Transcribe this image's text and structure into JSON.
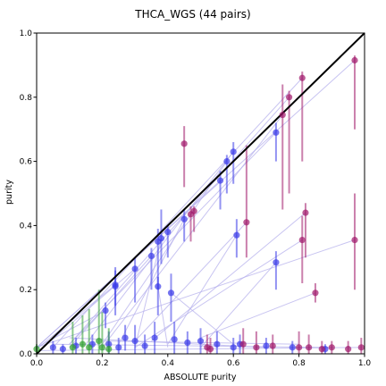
{
  "chart_data": {
    "type": "scatter",
    "title": "THCA_WGS (44 pairs)",
    "xlabel": "ABSOLUTE purity",
    "ylabel": "purity",
    "xlim": [
      0,
      1
    ],
    "ylim": [
      0,
      1
    ],
    "xticks": [
      "0.0",
      "0.2",
      "0.4",
      "0.6",
      "0.8",
      "1.0"
    ],
    "yticks": [
      "0.0",
      "0.2",
      "0.4",
      "0.6",
      "0.8",
      "1.0"
    ],
    "grid": false,
    "legend": "none",
    "colors": {
      "blue": "#3a3ae8",
      "purple": "#a0176a",
      "green": "#2e9e2e",
      "line": "#b6b0ec",
      "identity": "#000000"
    },
    "identity_line": [
      [
        0,
        0
      ],
      [
        1,
        1
      ]
    ],
    "series": [
      {
        "color": "blue",
        "points": [
          {
            "x": 0.6,
            "y": 0.63,
            "lo": 0.53,
            "hi": 0.66
          },
          {
            "x": 0.58,
            "y": 0.6,
            "lo": 0.5,
            "hi": 0.62
          },
          {
            "x": 0.56,
            "y": 0.54,
            "lo": 0.45,
            "hi": 0.57
          },
          {
            "x": 0.73,
            "y": 0.69,
            "lo": 0.6,
            "hi": 0.72
          },
          {
            "x": 0.61,
            "y": 0.37,
            "lo": 0.3,
            "hi": 0.42
          },
          {
            "x": 0.73,
            "y": 0.285,
            "lo": 0.2,
            "hi": 0.32
          },
          {
            "x": 0.45,
            "y": 0.42,
            "lo": 0.35,
            "hi": 0.45
          },
          {
            "x": 0.4,
            "y": 0.38,
            "lo": 0.3,
            "hi": 0.4
          },
          {
            "x": 0.38,
            "y": 0.36,
            "lo": 0.28,
            "hi": 0.45
          },
          {
            "x": 0.37,
            "y": 0.35,
            "lo": 0.2,
            "hi": 0.39
          },
          {
            "x": 0.35,
            "y": 0.305,
            "lo": 0.2,
            "hi": 0.33
          },
          {
            "x": 0.37,
            "y": 0.21,
            "lo": 0.12,
            "hi": 0.24
          },
          {
            "x": 0.41,
            "y": 0.19,
            "lo": 0.1,
            "hi": 0.25
          },
          {
            "x": 0.3,
            "y": 0.265,
            "lo": 0.16,
            "hi": 0.3
          },
          {
            "x": 0.24,
            "y": 0.215,
            "lo": 0.15,
            "hi": 0.27
          },
          {
            "x": 0.24,
            "y": 0.21,
            "lo": 0.12,
            "hi": 0.26
          },
          {
            "x": 0.21,
            "y": 0.135,
            "lo": 0.08,
            "hi": 0.16
          },
          {
            "x": 0.27,
            "y": 0.05,
            "lo": 0.01,
            "hi": 0.09
          },
          {
            "x": 0.3,
            "y": 0.04,
            "lo": 0.0,
            "hi": 0.09
          },
          {
            "x": 0.36,
            "y": 0.05,
            "lo": 0.0,
            "hi": 0.1
          },
          {
            "x": 0.42,
            "y": 0.045,
            "lo": 0.0,
            "hi": 0.1
          },
          {
            "x": 0.5,
            "y": 0.04,
            "lo": 0.0,
            "hi": 0.08
          },
          {
            "x": 0.55,
            "y": 0.03,
            "lo": 0.0,
            "hi": 0.07
          },
          {
            "x": 0.62,
            "y": 0.03,
            "lo": 0.0,
            "hi": 0.06
          },
          {
            "x": 0.7,
            "y": 0.025,
            "lo": 0.0,
            "hi": 0.05
          },
          {
            "x": 0.78,
            "y": 0.02,
            "lo": 0.0,
            "hi": 0.04
          },
          {
            "x": 0.05,
            "y": 0.02,
            "lo": 0.0,
            "hi": 0.04
          },
          {
            "x": 0.12,
            "y": 0.025,
            "lo": 0.0,
            "hi": 0.05
          },
          {
            "x": 0.17,
            "y": 0.03,
            "lo": 0.0,
            "hi": 0.06
          },
          {
            "x": 0.22,
            "y": 0.03,
            "lo": 0.0,
            "hi": 0.07
          },
          {
            "x": 0.46,
            "y": 0.035,
            "lo": 0.0,
            "hi": 0.07
          },
          {
            "x": 0.6,
            "y": 0.02,
            "lo": 0.0,
            "hi": 0.05
          },
          {
            "x": 0.88,
            "y": 0.015,
            "lo": 0.0,
            "hi": 0.03
          },
          {
            "x": 0.25,
            "y": 0.02,
            "lo": 0.0,
            "hi": 0.05
          },
          {
            "x": 0.33,
            "y": 0.025,
            "lo": 0.0,
            "hi": 0.06
          },
          {
            "x": 0.08,
            "y": 0.015,
            "lo": 0.0,
            "hi": 0.03
          }
        ]
      },
      {
        "color": "purple",
        "points": [
          {
            "x": 0.97,
            "y": 0.915,
            "lo": 0.7,
            "hi": 0.93
          },
          {
            "x": 0.81,
            "y": 0.86,
            "lo": 0.6,
            "hi": 0.88
          },
          {
            "x": 0.77,
            "y": 0.8,
            "lo": 0.5,
            "hi": 0.82
          },
          {
            "x": 0.75,
            "y": 0.745,
            "lo": 0.45,
            "hi": 0.84
          },
          {
            "x": 0.45,
            "y": 0.655,
            "lo": 0.52,
            "hi": 0.71
          },
          {
            "x": 0.64,
            "y": 0.41,
            "lo": 0.3,
            "hi": 0.65
          },
          {
            "x": 0.47,
            "y": 0.435,
            "lo": 0.35,
            "hi": 0.46
          },
          {
            "x": 0.48,
            "y": 0.445,
            "lo": 0.38,
            "hi": 0.46
          },
          {
            "x": 0.82,
            "y": 0.44,
            "lo": 0.3,
            "hi": 0.47
          },
          {
            "x": 0.81,
            "y": 0.355,
            "lo": 0.22,
            "hi": 0.43
          },
          {
            "x": 0.97,
            "y": 0.355,
            "lo": 0.2,
            "hi": 0.5
          },
          {
            "x": 0.85,
            "y": 0.19,
            "lo": 0.16,
            "hi": 0.22
          },
          {
            "x": 0.99,
            "y": 0.02,
            "lo": 0.0,
            "hi": 0.05
          },
          {
            "x": 0.95,
            "y": 0.015,
            "lo": 0.0,
            "hi": 0.04
          },
          {
            "x": 0.9,
            "y": 0.02,
            "lo": 0.0,
            "hi": 0.04
          },
          {
            "x": 0.87,
            "y": 0.015,
            "lo": 0.0,
            "hi": 0.04
          },
          {
            "x": 0.83,
            "y": 0.02,
            "lo": 0.0,
            "hi": 0.06
          },
          {
            "x": 0.8,
            "y": 0.02,
            "lo": 0.0,
            "hi": 0.07
          },
          {
            "x": 0.72,
            "y": 0.025,
            "lo": 0.0,
            "hi": 0.06
          },
          {
            "x": 0.67,
            "y": 0.02,
            "lo": 0.0,
            "hi": 0.07
          },
          {
            "x": 0.63,
            "y": 0.03,
            "lo": 0.0,
            "hi": 0.08
          },
          {
            "x": 0.53,
            "y": 0.015,
            "lo": 0.0,
            "hi": 0.05
          },
          {
            "x": 0.52,
            "y": 0.02,
            "lo": 0.0,
            "hi": 0.06
          }
        ]
      },
      {
        "color": "green",
        "points": [
          {
            "x": 0.0,
            "y": 0.015,
            "lo": 0.0,
            "hi": 0.03
          },
          {
            "x": 0.11,
            "y": 0.02,
            "lo": 0.0,
            "hi": 0.1
          },
          {
            "x": 0.14,
            "y": 0.03,
            "lo": 0.0,
            "hi": 0.12
          },
          {
            "x": 0.16,
            "y": 0.02,
            "lo": 0.0,
            "hi": 0.14
          },
          {
            "x": 0.19,
            "y": 0.04,
            "lo": 0.0,
            "hi": 0.2
          },
          {
            "x": 0.2,
            "y": 0.02,
            "lo": 0.0,
            "hi": 0.13
          },
          {
            "x": 0.22,
            "y": 0.015,
            "lo": 0.0,
            "hi": 0.08
          }
        ]
      }
    ],
    "connectors": [
      [
        [
          0.0,
          0.02
        ],
        [
          0.97,
          0.915
        ]
      ],
      [
        [
          0.05,
          0.02
        ],
        [
          0.81,
          0.86
        ]
      ],
      [
        [
          0.1,
          0.03
        ],
        [
          0.77,
          0.8
        ]
      ],
      [
        [
          0.2,
          0.02
        ],
        [
          0.75,
          0.745
        ]
      ],
      [
        [
          0.15,
          0.03
        ],
        [
          0.6,
          0.63
        ]
      ],
      [
        [
          0.2,
          0.03
        ],
        [
          0.58,
          0.6
        ]
      ],
      [
        [
          0.0,
          0.02
        ],
        [
          0.56,
          0.54
        ]
      ],
      [
        [
          0.1,
          0.03
        ],
        [
          0.73,
          0.69
        ]
      ],
      [
        [
          0.3,
          0.04
        ],
        [
          0.64,
          0.41
        ]
      ],
      [
        [
          0.25,
          0.03
        ],
        [
          0.45,
          0.42
        ]
      ],
      [
        [
          0.35,
          0.04
        ],
        [
          0.82,
          0.44
        ]
      ],
      [
        [
          0.4,
          0.03
        ],
        [
          0.61,
          0.37
        ]
      ],
      [
        [
          0.3,
          0.02
        ],
        [
          0.38,
          0.36
        ]
      ],
      [
        [
          0.1,
          0.02
        ],
        [
          0.35,
          0.305
        ]
      ],
      [
        [
          0.5,
          0.02
        ],
        [
          0.73,
          0.285
        ]
      ],
      [
        [
          0.0,
          0.015
        ],
        [
          0.24,
          0.215
        ]
      ],
      [
        [
          0.6,
          0.03
        ],
        [
          0.41,
          0.19
        ]
      ],
      [
        [
          0.02,
          0.02
        ],
        [
          0.3,
          0.265
        ]
      ],
      [
        [
          0.5,
          0.05
        ],
        [
          0.85,
          0.19
        ]
      ],
      [
        [
          0.3,
          0.02
        ],
        [
          0.81,
          0.355
        ]
      ],
      [
        [
          0.0,
          0.02
        ],
        [
          0.97,
          0.355
        ]
      ],
      [
        [
          0.0,
          0.02
        ],
        [
          0.21,
          0.135
        ]
      ],
      [
        [
          0.4,
          0.02
        ],
        [
          0.37,
          0.21
        ]
      ],
      [
        [
          0.0,
          0.01
        ],
        [
          0.99,
          0.02
        ]
      ],
      [
        [
          0.05,
          0.03
        ],
        [
          0.9,
          0.02
        ]
      ],
      [
        [
          0.2,
          0.04
        ],
        [
          0.8,
          0.03
        ]
      ],
      [
        [
          0.1,
          0.05
        ],
        [
          0.7,
          0.02
        ]
      ]
    ]
  }
}
